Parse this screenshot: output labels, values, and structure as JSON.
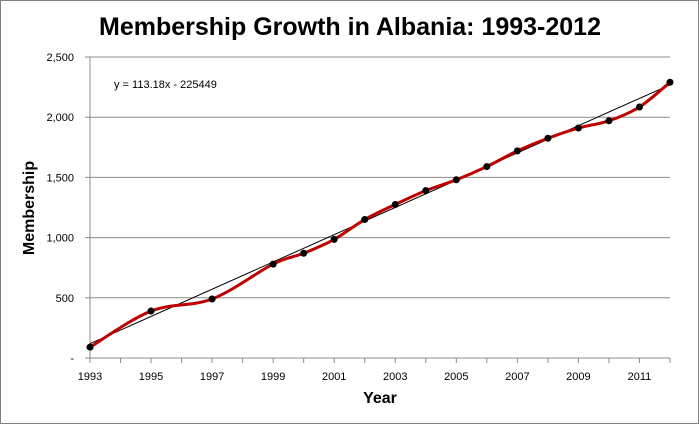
{
  "chart_data": {
    "type": "line",
    "title": "Membership Growth in Albania: 1993-2012",
    "xlabel": "Year",
    "ylabel": "Membership",
    "xlim": [
      1993,
      2012
    ],
    "ylim": [
      0,
      2500
    ],
    "grid": "horizontal",
    "x_ticks": [
      1993,
      1995,
      1997,
      1999,
      2001,
      2003,
      2005,
      2007,
      2009,
      2011
    ],
    "x_tick_labels": [
      "1993",
      "1995",
      "1997",
      "1999",
      "2001",
      "2003",
      "2005",
      "2007",
      "2009",
      "2011"
    ],
    "y_ticks": [
      0,
      500,
      1000,
      1500,
      2000,
      2500
    ],
    "y_tick_labels": [
      "-",
      "500",
      "1,000",
      "1,500",
      "2,000",
      "2,500"
    ],
    "series": [
      {
        "name": "Membership",
        "color": "#c00000",
        "marker_color": "#000000",
        "smooth": true,
        "x": [
          1993,
          1995,
          1997,
          1999,
          2000,
          2001,
          2002,
          2003,
          2004,
          2005,
          2006,
          2007,
          2008,
          2009,
          2010,
          2011,
          2012
        ],
        "values": [
          90,
          390,
          490,
          780,
          870,
          985,
          1150,
          1275,
          1390,
          1480,
          1590,
          1720,
          1825,
          1910,
          1970,
          2085,
          2290
        ]
      }
    ],
    "trendline": {
      "type": "linear",
      "slope": 113.18,
      "intercept": -225449,
      "color": "#000000",
      "x_range": [
        1993,
        2012
      ],
      "label": "y = 113.18x - 225449"
    }
  }
}
